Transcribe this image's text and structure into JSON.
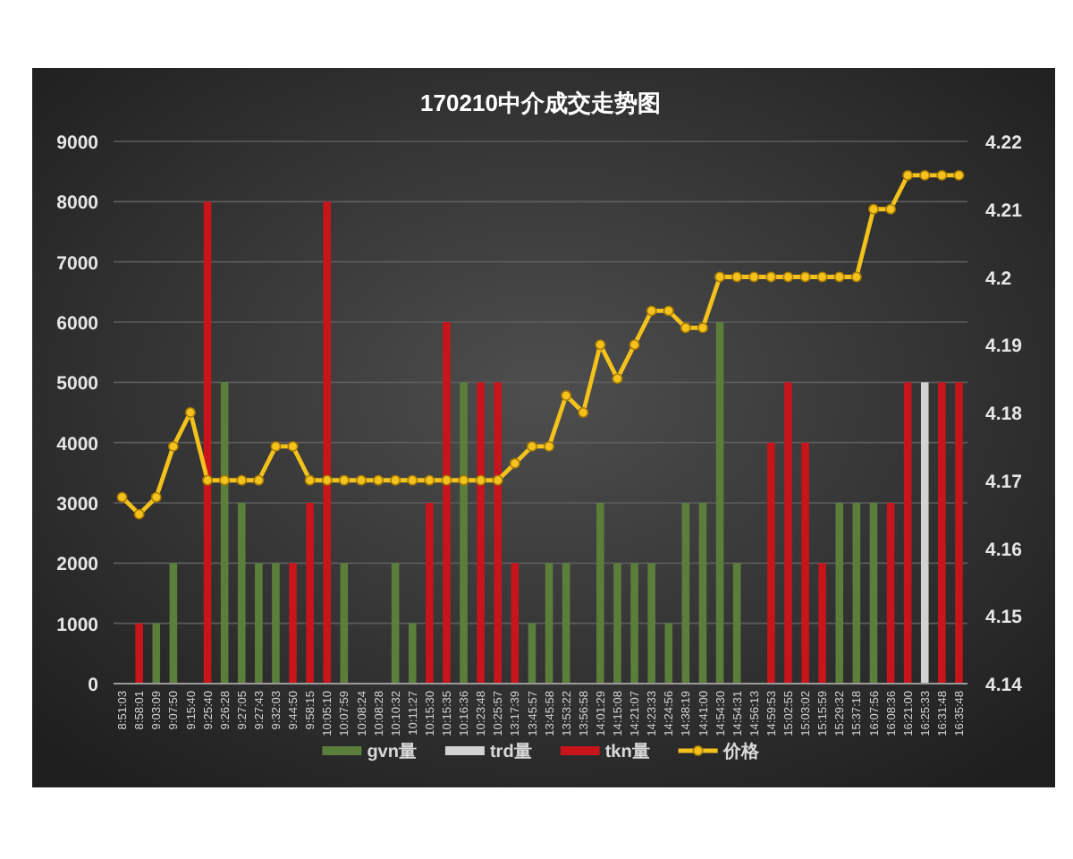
{
  "chart_data": {
    "type": "bar",
    "title": "170210中介成交走势图",
    "categories": [
      "8:51:03",
      "8:58:01",
      "9:03:09",
      "9:07:50",
      "9:15:40",
      "9:25:40",
      "9:26:28",
      "9:27:05",
      "9:27:43",
      "9:32:03",
      "9:44:50",
      "9:58:15",
      "10:05:10",
      "10:07:59",
      "10:08:24",
      "10:08:28",
      "10:10:32",
      "10:11:27",
      "10:15:30",
      "10:15:35",
      "10:16:36",
      "10:23:48",
      "10:25:57",
      "13:17:39",
      "13:45:57",
      "13:45:58",
      "13:53:22",
      "13:56:58",
      "14:01:29",
      "14:15:08",
      "14:21:07",
      "14:23:33",
      "14:24:56",
      "14:38:19",
      "14:41:00",
      "14:54:30",
      "14:54:31",
      "14:56:13",
      "14:59:53",
      "15:02:55",
      "15:03:02",
      "15:15:59",
      "15:29:32",
      "15:37:18",
      "16:07:56",
      "16:08:36",
      "16:21:00",
      "16:25:33",
      "16:31:48",
      "16:35:48"
    ],
    "series": [
      {
        "name": "gvn量",
        "color": "#5b7f3a",
        "values": [
          null,
          null,
          1000,
          2000,
          null,
          null,
          5000,
          3000,
          2000,
          2000,
          null,
          null,
          null,
          2000,
          null,
          null,
          2000,
          1000,
          null,
          null,
          5000,
          null,
          null,
          null,
          1000,
          2000,
          2000,
          null,
          3000,
          2000,
          2000,
          2000,
          1000,
          3000,
          3000,
          6000,
          2000,
          null,
          null,
          null,
          null,
          null,
          3000,
          3000,
          3000,
          null,
          null,
          null,
          null,
          null
        ]
      },
      {
        "name": "trd量",
        "color": "#d2d2d2",
        "values": [
          null,
          null,
          null,
          null,
          null,
          null,
          null,
          null,
          null,
          null,
          null,
          null,
          null,
          null,
          null,
          null,
          null,
          null,
          null,
          null,
          null,
          null,
          null,
          null,
          null,
          null,
          null,
          null,
          null,
          null,
          null,
          null,
          null,
          null,
          null,
          null,
          null,
          null,
          null,
          null,
          null,
          null,
          null,
          null,
          null,
          null,
          null,
          5000,
          null,
          null
        ]
      },
      {
        "name": "tkn量",
        "color": "#c8141b",
        "values": [
          null,
          1000,
          null,
          null,
          null,
          8000,
          null,
          null,
          null,
          null,
          2000,
          3000,
          8000,
          null,
          null,
          null,
          null,
          null,
          3000,
          6000,
          null,
          5000,
          5000,
          2000,
          null,
          null,
          null,
          null,
          null,
          null,
          null,
          null,
          null,
          null,
          null,
          null,
          null,
          null,
          4000,
          5000,
          4000,
          2000,
          null,
          null,
          null,
          3000,
          5000,
          null,
          5000,
          5000
        ]
      },
      {
        "name": "价格",
        "type": "line",
        "axis": "y2",
        "color": "#f4c21c",
        "values": [
          4.1675,
          4.165,
          4.1675,
          4.175,
          4.18,
          4.17,
          4.17,
          4.17,
          4.17,
          4.175,
          4.175,
          4.17,
          4.17,
          4.17,
          4.17,
          4.17,
          4.17,
          4.17,
          4.17,
          4.17,
          4.17,
          4.17,
          4.17,
          4.1725,
          4.175,
          4.175,
          4.1825,
          4.18,
          4.19,
          4.185,
          4.19,
          4.195,
          4.195,
          4.1925,
          4.1925,
          4.2,
          4.2,
          4.2,
          4.2,
          4.2,
          4.2,
          4.2,
          4.2,
          4.2,
          4.21,
          4.21,
          4.215,
          4.215,
          4.215,
          4.215
        ]
      }
    ],
    "ylim": [
      0,
      9000
    ],
    "yticks": [
      0,
      1000,
      2000,
      3000,
      4000,
      5000,
      6000,
      7000,
      8000,
      9000
    ],
    "y2lim": [
      4.14,
      4.22
    ],
    "y2ticks": [
      4.14,
      4.15,
      4.16,
      4.17,
      4.18,
      4.19,
      4.2,
      4.21,
      4.22
    ],
    "grid": "y",
    "legend": "bottom",
    "marker": "circle"
  }
}
